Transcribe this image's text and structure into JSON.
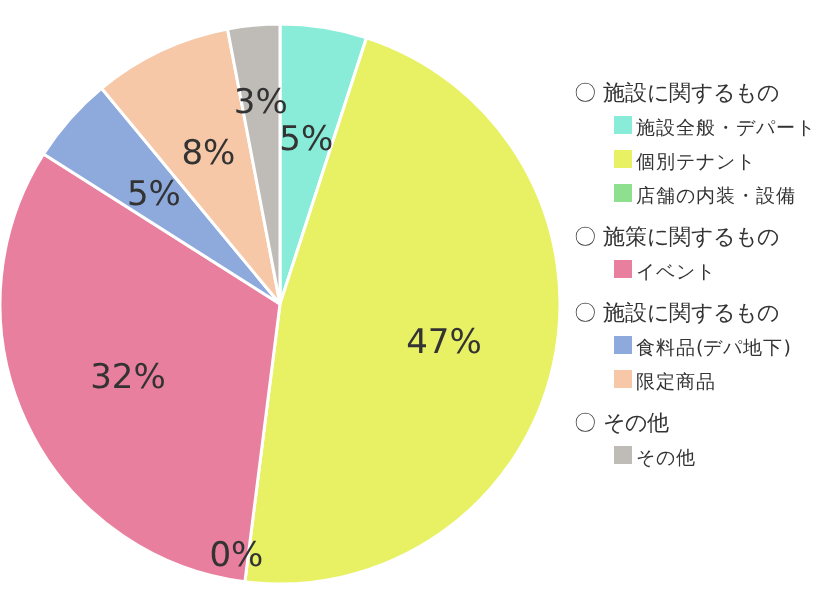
{
  "chart_data": {
    "type": "pie",
    "categories": [
      "施設全般・デパート",
      "個別テナント",
      "店舗の内装・設備",
      "イベント",
      "食料品(デパ地下)",
      "限定商品",
      "その他"
    ],
    "values": [
      5,
      47,
      0,
      32,
      5,
      8,
      3
    ],
    "value_labels": [
      "5%",
      "47%",
      "0%",
      "32%",
      "5%",
      "8%",
      "3%"
    ],
    "colors": [
      "#88ecd9",
      "#e8f064",
      "#8ee08e",
      "#e97f9e",
      "#8eaadd",
      "#f6c8a8",
      "#bfbcb8"
    ],
    "legend": "right",
    "annotations": [
      "〇 施設に関するもの",
      "〇 施策に関するもの",
      "〇 施設に関するもの",
      "〇 その他"
    ]
  }
}
